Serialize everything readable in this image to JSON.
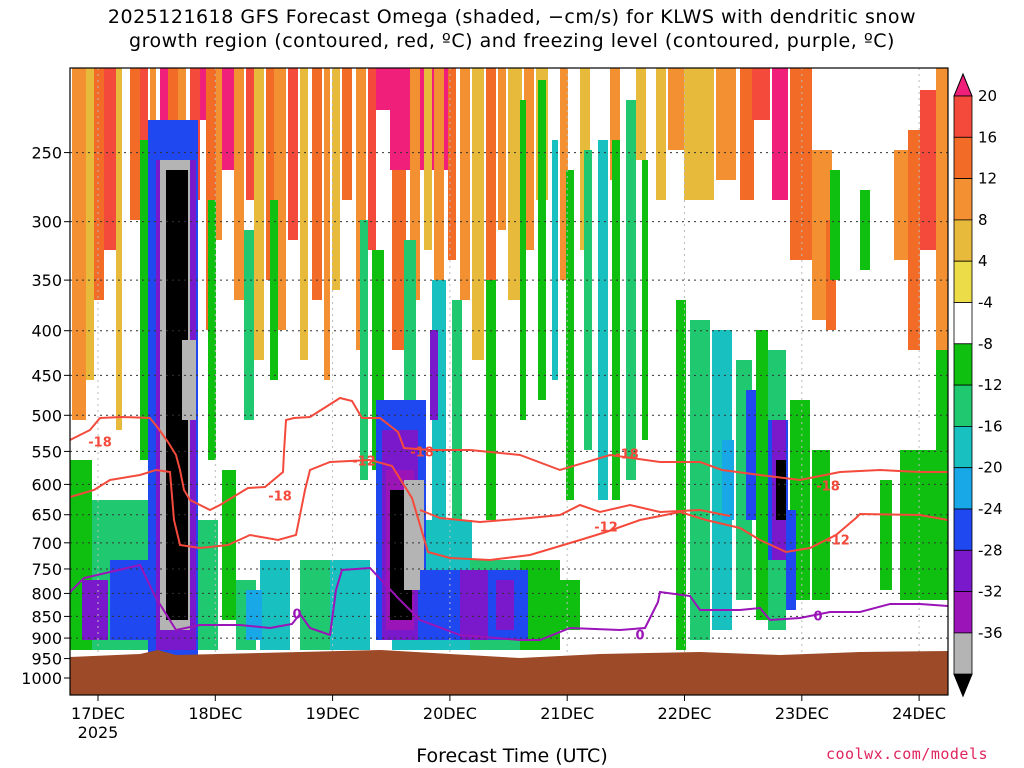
{
  "chart_data": {
    "type": "heatmap",
    "title_line1": "2025121618 GFS Forecast Omega (shaded, −cm/s) for KLWS with dendritic snow",
    "title_line2": "growth region (contoured, red, ºC) and freezing level (contoured, purple, ºC)",
    "xlabel": "Forecast Time (UTC)",
    "ylabel": "",
    "credit": "coolwx.com/models",
    "x_ticks": [
      "17DEC",
      "18DEC",
      "19DEC",
      "20DEC",
      "21DEC",
      "22DEC",
      "23DEC",
      "24DEC"
    ],
    "x_tick_year": "2025",
    "y_ticks": [
      "250",
      "300",
      "350",
      "400",
      "450",
      "500",
      "550",
      "600",
      "650",
      "700",
      "750",
      "800",
      "850",
      "900",
      "950",
      "1000"
    ],
    "y_range": [
      200,
      1000
    ],
    "y_scale": "log-pressure (inverted)",
    "grid": true,
    "colorbar": {
      "labels": [
        "20",
        "16",
        "12",
        "8",
        "4",
        "-4",
        "-8",
        "-12",
        "-16",
        "-20",
        "-24",
        "-28",
        "-32",
        "-36"
      ],
      "colors": [
        "#f0207a",
        "#f44a3c",
        "#f26c28",
        "#f29032",
        "#e8ba3c",
        "#ecdc48",
        "#ffffff",
        "#10c010",
        "#20c870",
        "#18c0c0",
        "#18a8e8",
        "#2048f0",
        "#7a18cc",
        "#9a14b8",
        "#b4b4b4",
        "#000000"
      ]
    },
    "contours": {
      "snow_growth_min": "-12",
      "snow_growth_max": "-18",
      "freezing": "0",
      "snow_growth_color": "#f44a3c",
      "freezing_color": "#9a14b8"
    },
    "surface_color": "#9c4a28"
  }
}
